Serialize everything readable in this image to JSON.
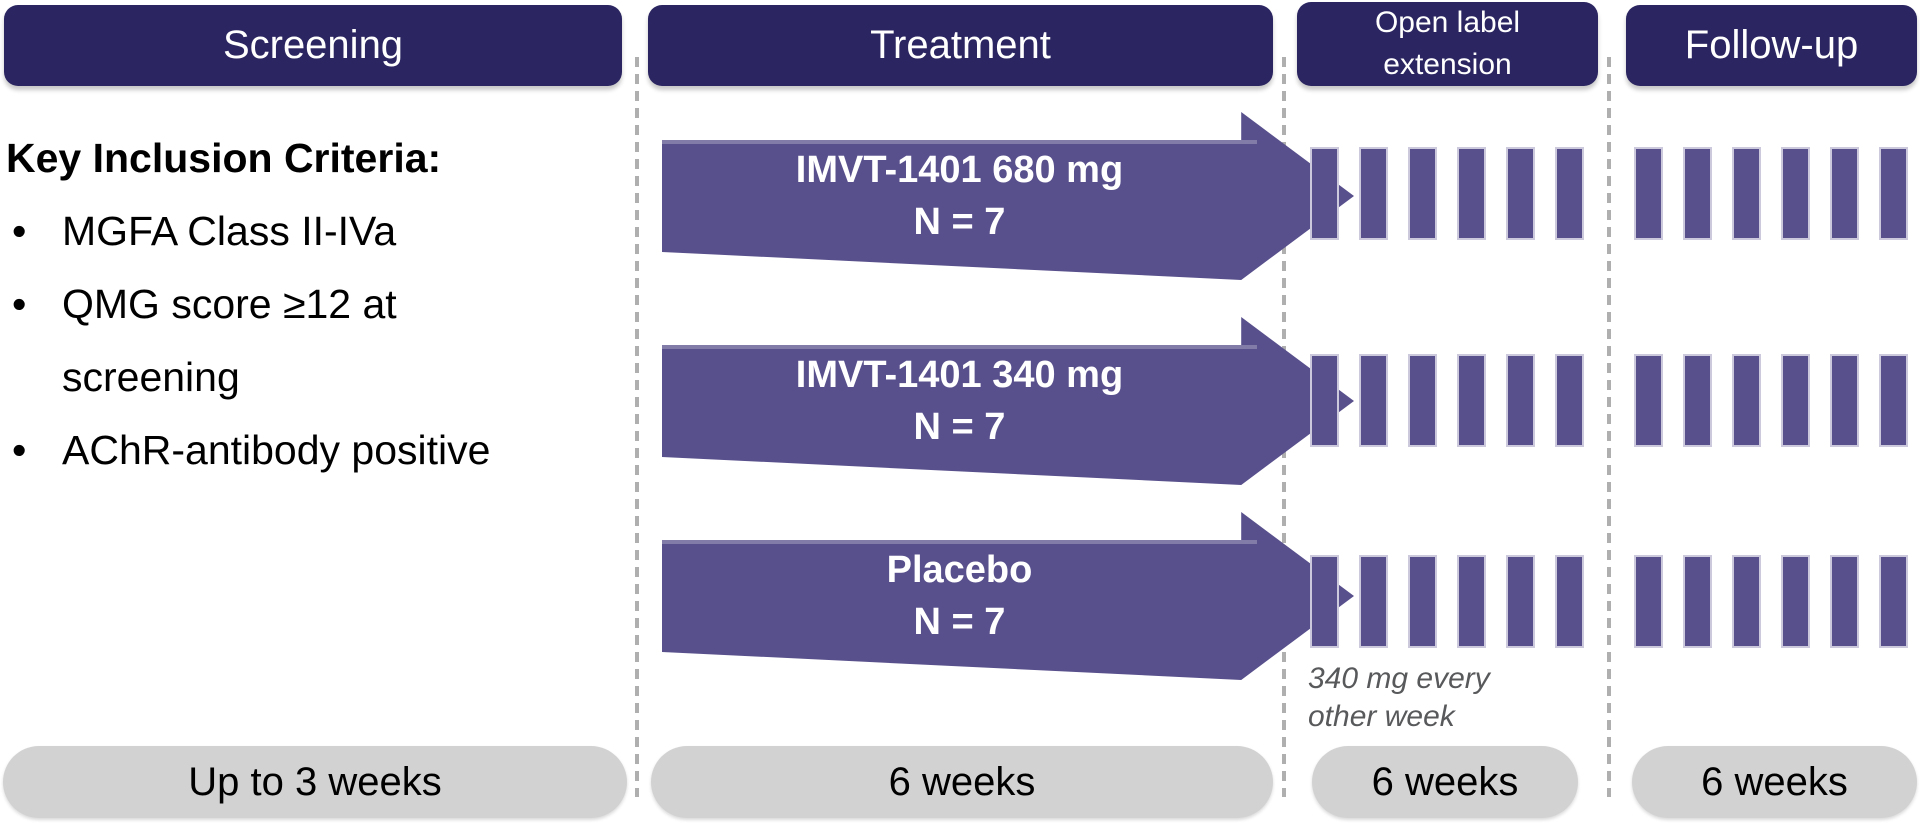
{
  "title": "Clinical trial design schema",
  "colors": {
    "header_bg": "#2B2661",
    "arm_purple": "#58508C",
    "bar_border": "#CCC9DC",
    "pill_gray": "#D2D2D2",
    "divider_gray": "#AFAFAF",
    "note_gray": "#58595B"
  },
  "columns": [
    {
      "id": "screening",
      "header": "Screening",
      "duration": "Up to 3 weeks"
    },
    {
      "id": "treatment",
      "header": "Treatment",
      "duration": "6 weeks"
    },
    {
      "id": "open-label-extension",
      "header": "Open label extension",
      "duration": "6 weeks"
    },
    {
      "id": "follow-up",
      "header": "Follow-up",
      "duration": "6 weeks"
    }
  ],
  "screening": {
    "criteria_title": "Key Inclusion Criteria:",
    "criteria": [
      "MGFA Class II-IVa",
      "QMG score ≥12 at screening",
      "AChR-antibody positive"
    ]
  },
  "treatment": {
    "arms": [
      {
        "label": "IMVT-1401 680 mg",
        "n": "N = 7"
      },
      {
        "label": "IMVT-1401 340 mg",
        "n": "N = 7"
      },
      {
        "label": "Placebo",
        "n": "N = 7"
      }
    ]
  },
  "dose_markers": {
    "rows_per_column": 3,
    "bars_per_row": 6
  },
  "open_label_note": "340 mg every\nother week"
}
